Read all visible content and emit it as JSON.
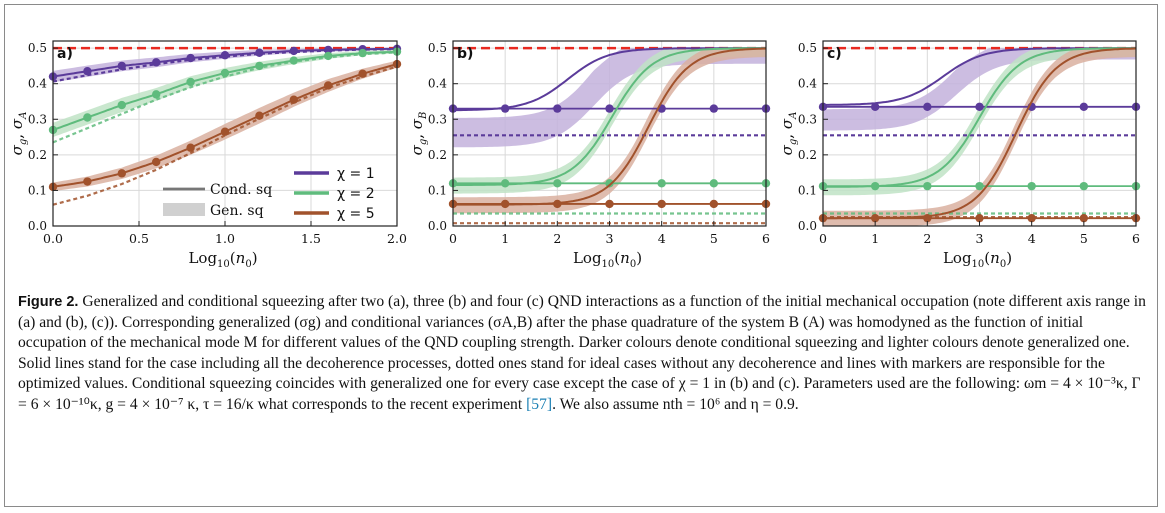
{
  "figure": {
    "label": "Figure 2.",
    "caption": "Generalized and conditional squeezing after two (a), three (b) and four (c) QND interactions as a function of the initial mechanical occupation (note different axis range in (a) and (b), (c)). Corresponding generalized (σg) and conditional variances (σA,B) after the phase quadrature of the system B (A) was homodyned as the function of initial occupation of the mechanical mode M for different values of the QND coupling strength. Darker colours denote conditional squeezing and lighter colours denote generalized one. Solid lines stand for the case including all the decoherence processes, dotted ones stand for ideal cases without any decoherence and lines with markers are responsible for the optimized values. Conditional squeezing coincides with generalized one for every case except the case of χ = 1 in (b) and (c). Parameters used are the following: ωm = 4 × 10⁻³κ, Γ = 6 × 10⁻¹⁰κ, g = 4 × 10⁻⁷ κ, τ = 16/κ what corresponds to the recent experiment",
    "citation": "[57]",
    "caption_end": ". We also assume nth = 10⁶ and η = 0.9."
  },
  "legend": {
    "cond": "Cond. sq",
    "gen": "Gen. sq",
    "chi1": "χ = 1",
    "chi2": "χ = 2",
    "chi5": "χ = 5"
  },
  "colors": {
    "chi1": "#5b3b9a",
    "chi1_light": "#c3b2dc",
    "chi2": "#5fbb7d",
    "chi2_light": "#bfe3c6",
    "chi5": "#a1522c",
    "chi5_light": "#d9b0a0",
    "reference": "#e8281f",
    "grid": "#d9d9d9"
  },
  "chart_data": [
    {
      "panel": "a)",
      "type": "line",
      "xlabel": "Log10(n0)",
      "ylabel": "σg, σA",
      "xlim": [
        0,
        2
      ],
      "ylim": [
        0,
        0.52
      ],
      "xticks": [
        "0.0",
        "0.5",
        "1.0",
        "1.5",
        "2.0"
      ],
      "yticks": [
        "0.0",
        "0.1",
        "0.2",
        "0.3",
        "0.4",
        "0.5"
      ],
      "grid": true,
      "legend_position": "bottom-right",
      "reference_line": 0.5,
      "series": [
        {
          "name": "χ = 1",
          "x": [
            0,
            0.2,
            0.4,
            0.6,
            0.8,
            1.0,
            1.2,
            1.4,
            1.6,
            1.8,
            2.0
          ],
          "y": [
            0.42,
            0.435,
            0.45,
            0.46,
            0.472,
            0.48,
            0.487,
            0.492,
            0.495,
            0.497,
            0.498
          ],
          "band": [
            0.016,
            0.016,
            0.015,
            0.014,
            0.012,
            0.01,
            0.008,
            0.006,
            0.005,
            0.004,
            0.003
          ],
          "dotted": [
            0.406,
            0.424,
            0.44,
            0.455,
            0.467,
            0.476,
            0.484,
            0.489,
            0.493,
            0.496,
            0.497
          ]
        },
        {
          "name": "χ = 2",
          "x": [
            0,
            0.2,
            0.4,
            0.6,
            0.8,
            1.0,
            1.2,
            1.4,
            1.6,
            1.8,
            2.0
          ],
          "y": [
            0.27,
            0.305,
            0.34,
            0.37,
            0.405,
            0.43,
            0.45,
            0.465,
            0.478,
            0.486,
            0.49
          ],
          "band": [
            0.02,
            0.02,
            0.02,
            0.018,
            0.016,
            0.014,
            0.012,
            0.01,
            0.008,
            0.006,
            0.005
          ],
          "dotted": [
            0.235,
            0.275,
            0.315,
            0.355,
            0.39,
            0.42,
            0.445,
            0.462,
            0.474,
            0.483,
            0.488
          ]
        },
        {
          "name": "χ = 5",
          "x": [
            0,
            0.2,
            0.4,
            0.6,
            0.8,
            1.0,
            1.2,
            1.4,
            1.6,
            1.8,
            2.0
          ],
          "y": [
            0.11,
            0.125,
            0.148,
            0.18,
            0.22,
            0.265,
            0.31,
            0.355,
            0.395,
            0.428,
            0.455
          ],
          "band": [
            0.012,
            0.014,
            0.016,
            0.018,
            0.02,
            0.022,
            0.022,
            0.02,
            0.018,
            0.014,
            0.01
          ],
          "dotted": [
            0.06,
            0.085,
            0.118,
            0.158,
            0.205,
            0.255,
            0.302,
            0.347,
            0.388,
            0.42,
            0.448
          ]
        }
      ]
    },
    {
      "panel": "b)",
      "type": "line",
      "xlabel": "Log10(n0)",
      "ylabel": "σg, σB",
      "xlim": [
        0,
        6
      ],
      "ylim": [
        0,
        0.52
      ],
      "xticks": [
        "0",
        "1",
        "2",
        "3",
        "4",
        "5",
        "6"
      ],
      "yticks": [
        "0.0",
        "0.1",
        "0.2",
        "0.3",
        "0.4",
        "0.5"
      ],
      "grid": true,
      "reference_line": 0.5,
      "series": [
        {
          "name": "χ = 1",
          "solid_plateau": 0.325,
          "solid_mid": 2.2,
          "band_plateau": 0.265,
          "band_mid": 2.7,
          "band_width": 0.055,
          "optimized": 0.33,
          "dotted": 0.255
        },
        {
          "name": "χ = 2",
          "solid_plateau": 0.115,
          "solid_mid": 3.05,
          "band_plateau": 0.115,
          "band_mid": 3.05,
          "band_width": 0.03,
          "optimized": 0.12,
          "dotted": 0.035
        },
        {
          "name": "χ = 5",
          "solid_plateau": 0.06,
          "solid_mid": 3.75,
          "band_plateau": 0.06,
          "band_mid": 3.75,
          "band_width": 0.03,
          "optimized": 0.062,
          "dotted": 0.008
        }
      ]
    },
    {
      "panel": "c)",
      "type": "line",
      "xlabel": "Log10(n0)",
      "ylabel": "σg, σA",
      "xlim": [
        0,
        6
      ],
      "ylim": [
        0,
        0.52
      ],
      "xticks": [
        "0",
        "1",
        "2",
        "3",
        "4",
        "5",
        "6"
      ],
      "yticks": [
        "0.0",
        "0.1",
        "0.2",
        "0.3",
        "0.4",
        "0.5"
      ],
      "grid": true,
      "reference_line": 0.5,
      "series": [
        {
          "name": "χ = 1",
          "solid_plateau": 0.34,
          "solid_mid": 2.3,
          "band_plateau": 0.3,
          "band_mid": 2.55,
          "band_width": 0.04,
          "optimized": 0.335,
          "dotted": 0.255
        },
        {
          "name": "χ = 2",
          "solid_plateau": 0.11,
          "solid_mid": 3.0,
          "band_plateau": 0.11,
          "band_mid": 3.0,
          "band_width": 0.03,
          "optimized": 0.112,
          "dotted": 0.035
        },
        {
          "name": "χ = 5",
          "solid_plateau": 0.022,
          "solid_mid": 3.7,
          "band_plateau": 0.022,
          "band_mid": 3.7,
          "band_width": 0.03,
          "optimized": 0.022,
          "dotted": 0.025
        }
      ]
    }
  ]
}
